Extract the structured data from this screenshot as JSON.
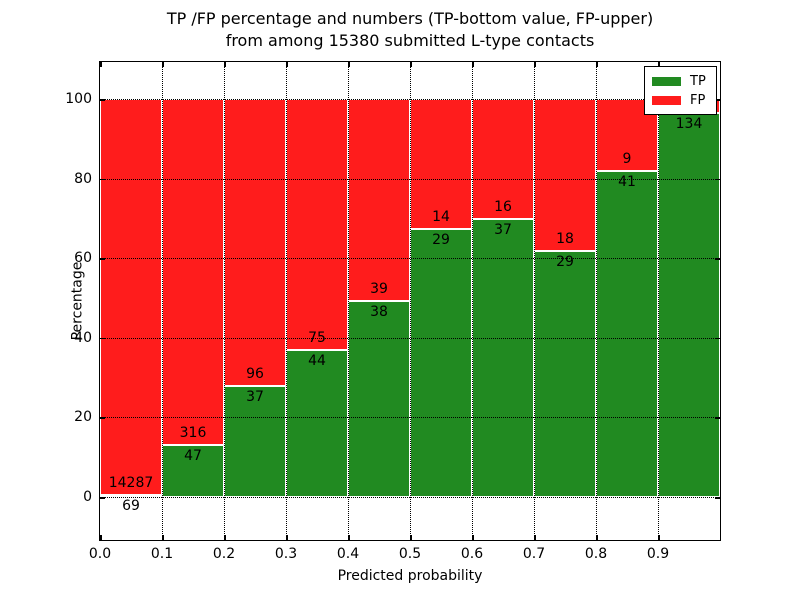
{
  "title": {
    "line1": "TP /FP percentage and numbers (TP-bottom value, FP-upper)",
    "line2": "from among 15380 submitted L-type contacts"
  },
  "axes": {
    "xlabel": "Predicted probability",
    "ylabel": "Percentage",
    "x_tick_labels": [
      "0.0",
      "0.1",
      "0.2",
      "0.3",
      "0.4",
      "0.5",
      "0.6",
      "0.7",
      "0.8",
      "0.9"
    ],
    "y_tick_labels": [
      "0",
      "20",
      "40",
      "60",
      "80",
      "100"
    ],
    "y_tick_values": [
      0,
      20,
      40,
      60,
      80,
      100
    ],
    "grid": true
  },
  "legend": {
    "position": "upper-right",
    "items": [
      {
        "label": "TP",
        "color": "#218a21"
      },
      {
        "label": "FP",
        "color": "#ff1c1c"
      }
    ]
  },
  "colors": {
    "tp_green": "#218a21",
    "fp_red": "#ff1c1c",
    "bar_edge": "#ffffff",
    "grid": "#000000"
  },
  "chart_data": {
    "type": "bar",
    "stacked": true,
    "normalized_to": 100,
    "title": "TP /FP percentage and numbers (TP-bottom value, FP-upper) from among 15380 submitted L-type contacts",
    "xlabel": "Predicted probability",
    "ylabel": "Percentage",
    "total_submitted_shown_in_title": 15380,
    "bin_edges": [
      0.0,
      0.1,
      0.2,
      0.3,
      0.4,
      0.5,
      0.6,
      0.7,
      0.8,
      0.9,
      1.0
    ],
    "series": [
      {
        "name": "TP",
        "color": "#218a21",
        "counts": [
          69,
          47,
          37,
          44,
          38,
          29,
          37,
          29,
          41,
          134
        ]
      },
      {
        "name": "FP",
        "color": "#ff1c1c",
        "counts": [
          14287,
          316,
          96,
          75,
          39,
          14,
          16,
          18,
          9,
          null
        ]
      }
    ],
    "tp_labels": [
      "69",
      "47",
      "37",
      "44",
      "38",
      "29",
      "37",
      "29",
      "41",
      "134"
    ],
    "fp_labels": [
      "14287",
      "316",
      "96",
      "75",
      "39",
      "14",
      "16",
      "18",
      "9",
      ""
    ],
    "tp_percent": [
      0.48,
      12.95,
      27.82,
      36.97,
      49.35,
      67.44,
      69.81,
      61.7,
      82.0,
      96.4
    ],
    "xlim": [
      0.0,
      1.0
    ],
    "ylim_data": [
      0,
      100
    ],
    "ylim_axis": [
      -10.8,
      109.3
    ],
    "legend_entries": [
      "TP",
      "FP"
    ]
  }
}
